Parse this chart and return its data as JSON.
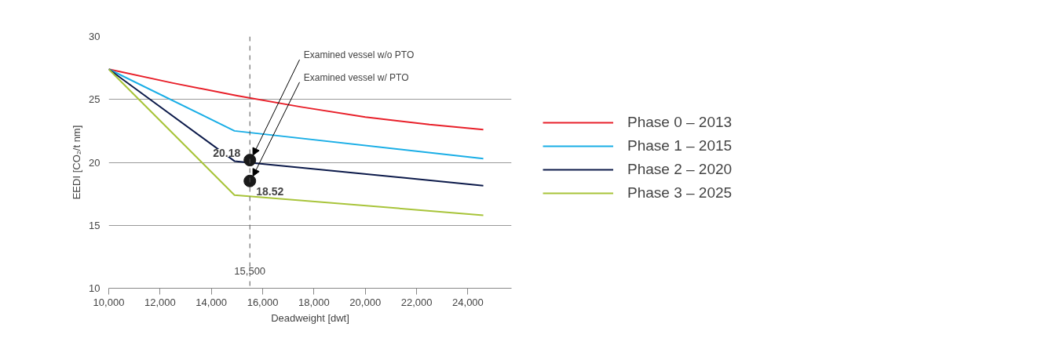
{
  "chart_data": {
    "type": "line",
    "xlabel": "Deadweight [dwt]",
    "ylabel": "EEDI [CO₂/t nm]",
    "xlim": [
      10000,
      25700
    ],
    "xticks": [
      {
        "value": 10000,
        "label": "10,000"
      },
      {
        "value": 12000,
        "label": "12,000"
      },
      {
        "value": 14000,
        "label": "14,000"
      },
      {
        "value": 16000,
        "label": "16,000"
      },
      {
        "value": 18000,
        "label": "18,000"
      },
      {
        "value": 20000,
        "label": "20,000"
      },
      {
        "value": 22000,
        "label": "22,000"
      },
      {
        "value": 24000,
        "label": "24,000"
      }
    ],
    "ylim": [
      10,
      30
    ],
    "yticks": [
      10,
      15,
      20,
      25,
      30
    ],
    "grid": "y",
    "legend": "right",
    "line_style": "solid",
    "series": [
      {
        "name": "Phase 0 – 2013",
        "color": "#e8202a",
        "x": [
          10000,
          12500,
          15000,
          17500,
          20000,
          22500,
          24600
        ],
        "values": [
          27.4,
          26.3,
          25.3,
          24.4,
          23.6,
          23.0,
          22.6
        ]
      },
      {
        "name": "Phase 1 – 2015",
        "color": "#1aaee6",
        "x": [
          10000,
          14900,
          24600
        ],
        "values": [
          27.4,
          22.5,
          20.3
        ]
      },
      {
        "name": "Phase 2 – 2020",
        "color": "#0c1a4a",
        "x": [
          10000,
          14900,
          24600
        ],
        "values": [
          27.4,
          20.1,
          18.15
        ]
      },
      {
        "name": "Phase 3 – 2025",
        "color": "#a8c43a",
        "x": [
          10000,
          14900,
          24600
        ],
        "values": [
          27.4,
          17.4,
          15.8
        ]
      },
      {
        "type": "scatter",
        "color": "#1a1a1a",
        "x": [
          15500,
          15500
        ],
        "values": [
          20.18,
          18.52
        ],
        "value_labels": [
          "20.18",
          "18.52"
        ]
      }
    ],
    "ref_lines": [
      {
        "axis": "x",
        "value": 15500,
        "label": "15,500",
        "color": "#555555",
        "line_style": "dashed"
      }
    ],
    "annotations": [
      {
        "text": "Examined vessel w/o PTO",
        "x": 15500,
        "y": 20.18
      },
      {
        "text": "Examined vessel w/ PTO",
        "x": 15500,
        "y": 18.52
      }
    ]
  }
}
